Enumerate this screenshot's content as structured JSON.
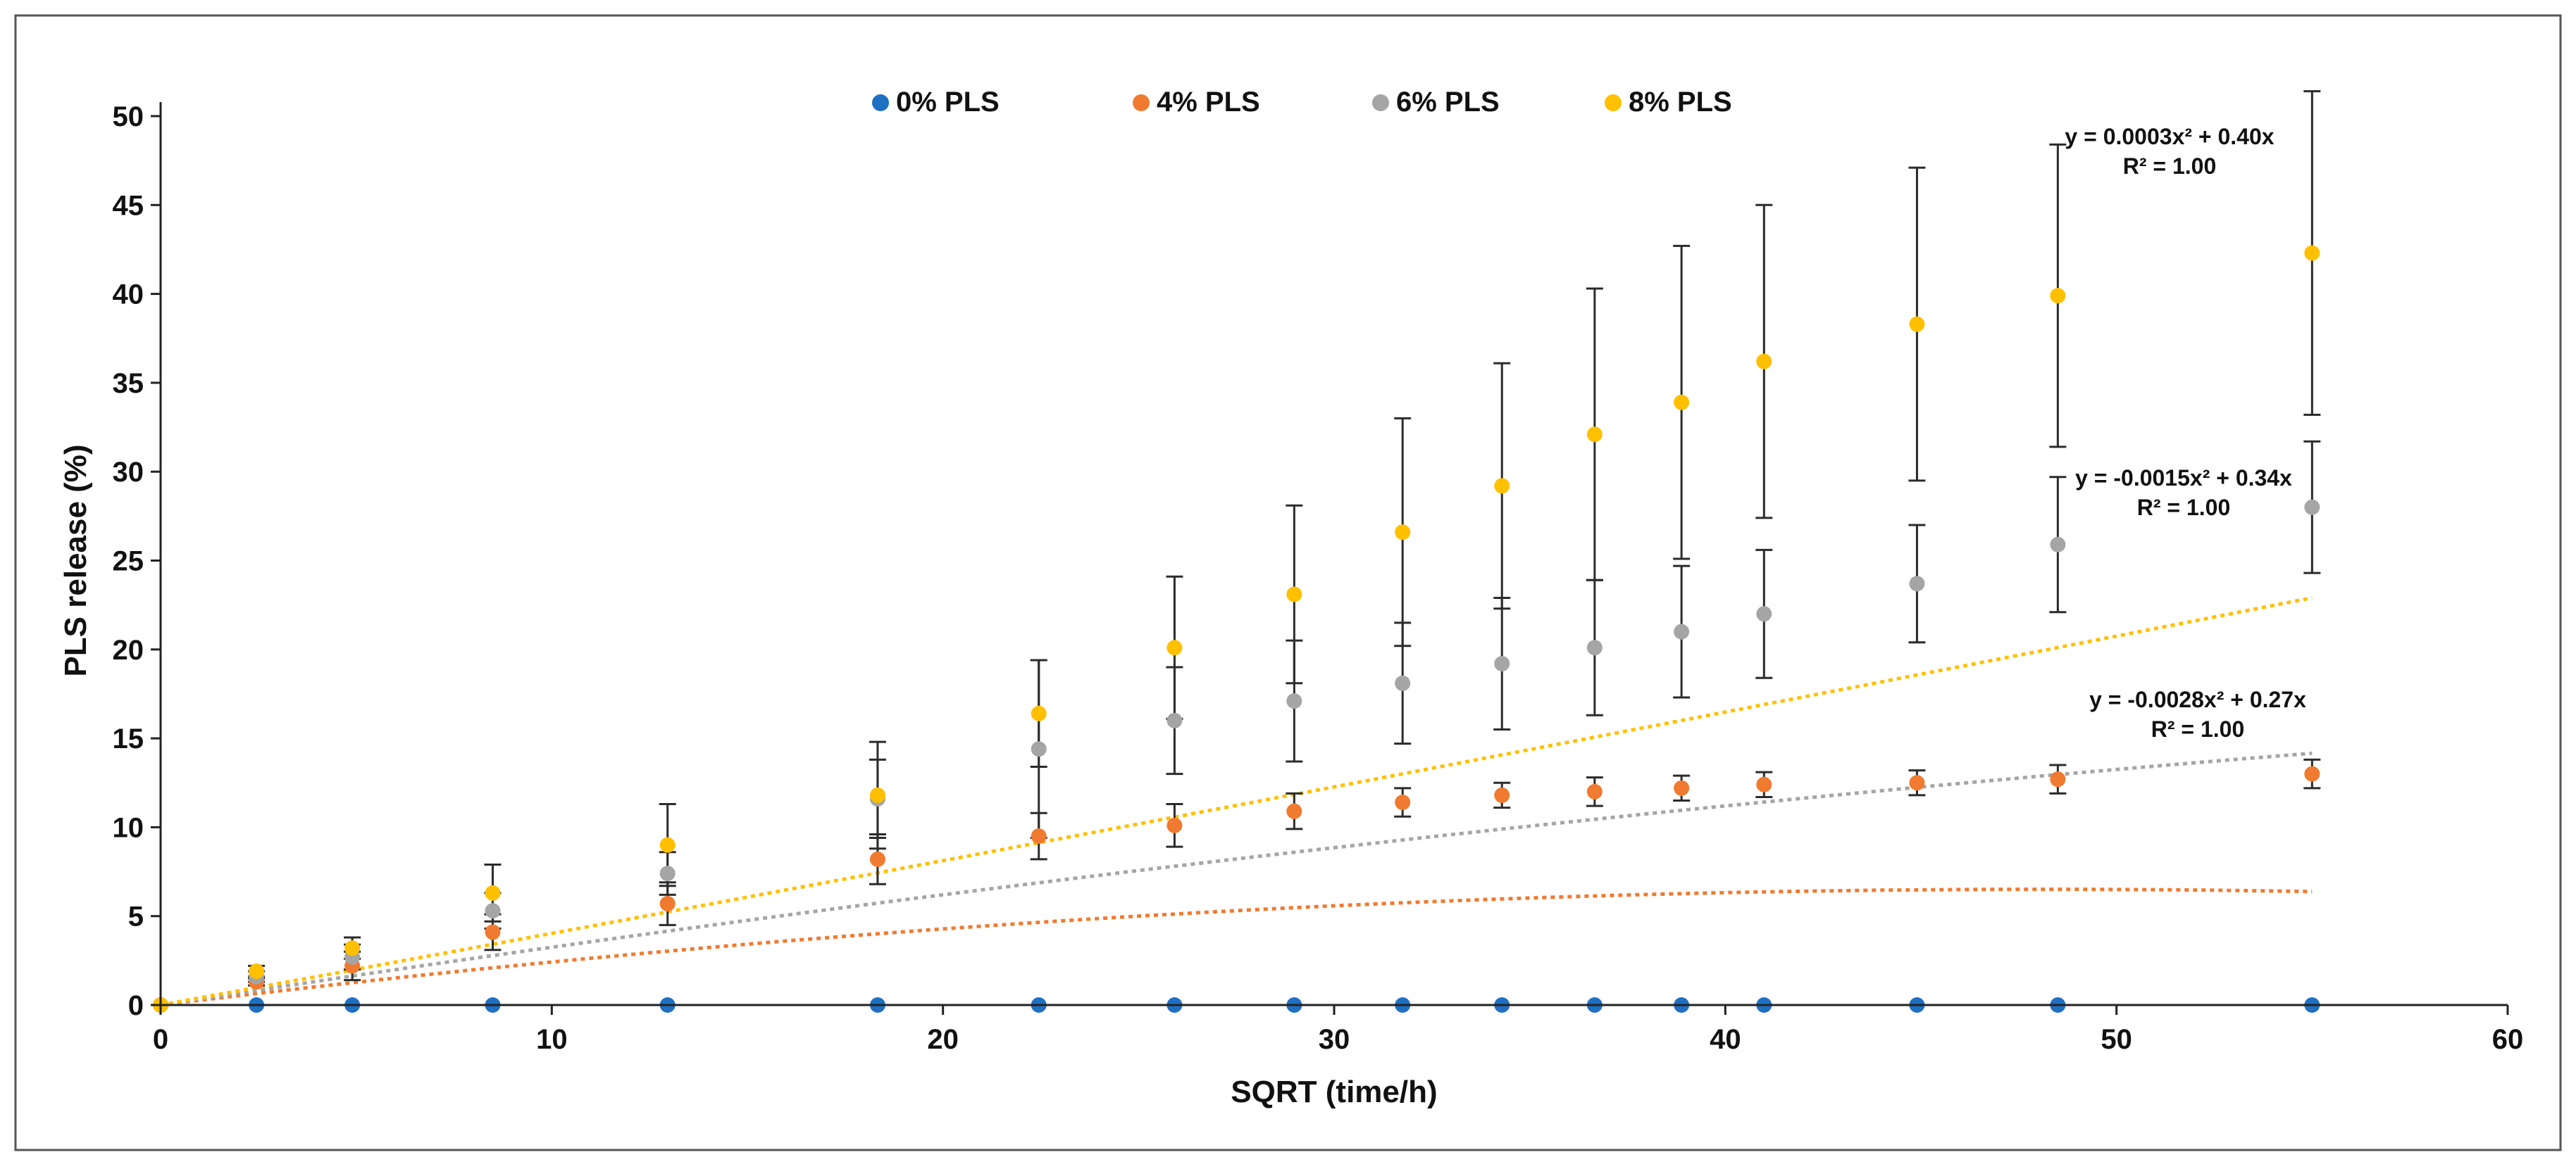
{
  "chart_data": {
    "type": "scatter",
    "title": "",
    "xlabel": "SQRT (time/h)",
    "ylabel": "PLS release (%)",
    "xlim": [
      0,
      60
    ],
    "ylim": [
      0,
      50
    ],
    "x_ticks": [
      0,
      10,
      20,
      30,
      40,
      50,
      60
    ],
    "y_ticks": [
      0,
      5,
      10,
      15,
      20,
      25,
      30,
      35,
      40,
      45,
      50
    ],
    "x_tick_labels": [
      "0",
      "10",
      "20",
      "30",
      "40",
      "50",
      "60"
    ],
    "y_tick_labels": [
      "0",
      "5",
      "10",
      "15",
      "20",
      "25",
      "30",
      "35",
      "40",
      "45",
      "50"
    ],
    "legend_position": "top-center",
    "x": [
      0,
      2.45,
      4.9,
      8.49,
      12.96,
      18.33,
      22.45,
      25.92,
      28.98,
      31.75,
      34.29,
      36.66,
      38.88,
      40.99,
      44.9,
      48.5,
      55.0
    ],
    "series": [
      {
        "name": "0% PLS",
        "color": "#1f6fc2",
        "values": [
          0,
          0,
          0,
          0,
          0,
          0,
          0,
          0,
          0,
          0,
          0,
          0,
          0,
          0,
          0,
          0,
          0
        ],
        "errors": [
          0,
          0,
          0,
          0,
          0,
          0,
          0,
          0,
          0,
          0,
          0,
          0,
          0,
          0,
          0,
          0,
          0
        ]
      },
      {
        "name": "4% PLS",
        "color": "#f07a2f",
        "values": [
          0,
          1.3,
          2.2,
          4.1,
          5.7,
          8.2,
          9.5,
          10.1,
          10.9,
          11.4,
          11.8,
          12.0,
          12.2,
          12.4,
          12.5,
          12.7,
          13.0
        ],
        "errors": [
          0,
          0.2,
          0.8,
          1.0,
          1.2,
          1.4,
          1.3,
          1.2,
          1.0,
          0.8,
          0.7,
          0.8,
          0.7,
          0.7,
          0.7,
          0.8,
          0.8
        ],
        "trendline": {
          "a": -0.0028,
          "b": 0.27,
          "dash": "dotted",
          "equation": "y = -0.0028x² + 0.27x",
          "r2": "R² = 1.00"
        }
      },
      {
        "name": "6% PLS",
        "color": "#a5a5a5",
        "values": [
          0,
          1.6,
          2.7,
          5.3,
          7.4,
          11.6,
          14.4,
          16.0,
          17.1,
          18.1,
          19.2,
          20.1,
          21.0,
          22.0,
          23.7,
          25.9,
          28.0
        ],
        "errors": [
          0,
          0.3,
          0.7,
          1.0,
          1.2,
          2.2,
          5.0,
          3.0,
          3.4,
          3.4,
          3.7,
          3.8,
          3.7,
          3.6,
          3.3,
          3.8,
          3.7
        ],
        "trendline": {
          "a": -0.0015,
          "b": 0.34,
          "dash": "dotted",
          "equation": "y = -0.0015x² + 0.34x",
          "r2": "R² = 1.00"
        }
      },
      {
        "name": "8% PLS",
        "color": "#ffc000",
        "values": [
          0,
          1.9,
          3.2,
          6.3,
          9.0,
          11.8,
          16.4,
          20.1,
          23.1,
          26.6,
          29.2,
          32.1,
          33.9,
          36.2,
          38.3,
          39.9,
          42.3
        ],
        "errors": [
          0,
          0.3,
          0.6,
          1.6,
          2.3,
          3.0,
          3.0,
          4.0,
          5.0,
          6.4,
          6.9,
          8.2,
          8.8,
          8.8,
          8.8,
          8.5,
          9.1
        ],
        "trendline": {
          "a": 0.0003,
          "b": 0.4,
          "dash": "dotted",
          "equation": "y = 0.0003x² + 0.40x",
          "r2": "R² = 1.00"
        }
      }
    ]
  }
}
